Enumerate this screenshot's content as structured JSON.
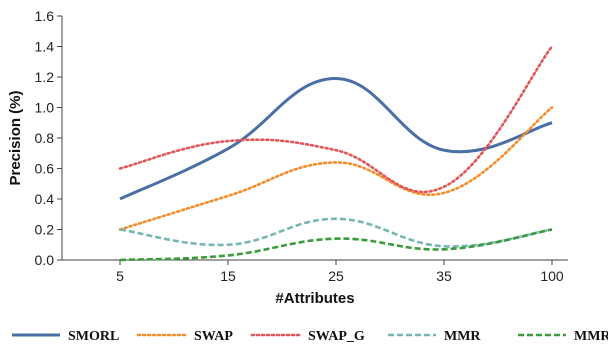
{
  "chart_data": {
    "type": "line",
    "title": "",
    "xlabel": "#Attributes",
    "ylabel": "Precision (%)",
    "categories": [
      "5",
      "15",
      "25",
      "35",
      "100"
    ],
    "ylim": [
      0,
      1.6
    ],
    "yticks": [
      "0.0",
      "0.2",
      "0.4",
      "0.6",
      "0.8",
      "1.0",
      "1.2",
      "1.4",
      "1.6"
    ],
    "grid": false,
    "legend_position": "bottom",
    "series": [
      {
        "name": "SMORL",
        "values": [
          0.4,
          0.73,
          1.19,
          0.72,
          0.9
        ],
        "color": "#4a6fa5",
        "dash": "solid"
      },
      {
        "name": "SWAP",
        "values": [
          0.2,
          0.42,
          0.64,
          0.44,
          1.0
        ],
        "color": "#f28e2b",
        "dash": "dotted"
      },
      {
        "name": "SWAP_G",
        "values": [
          0.6,
          0.78,
          0.72,
          0.48,
          1.4
        ],
        "color": "#e15759",
        "dash": "dotted"
      },
      {
        "name": "MMR",
        "values": [
          0.2,
          0.1,
          0.27,
          0.09,
          0.2
        ],
        "color": "#76b7b2",
        "dash": "dashed"
      },
      {
        "name": "MMR_G",
        "values": [
          0.0,
          0.03,
          0.14,
          0.07,
          0.2
        ],
        "color": "#3a9b3a",
        "dash": "dashed"
      }
    ]
  }
}
